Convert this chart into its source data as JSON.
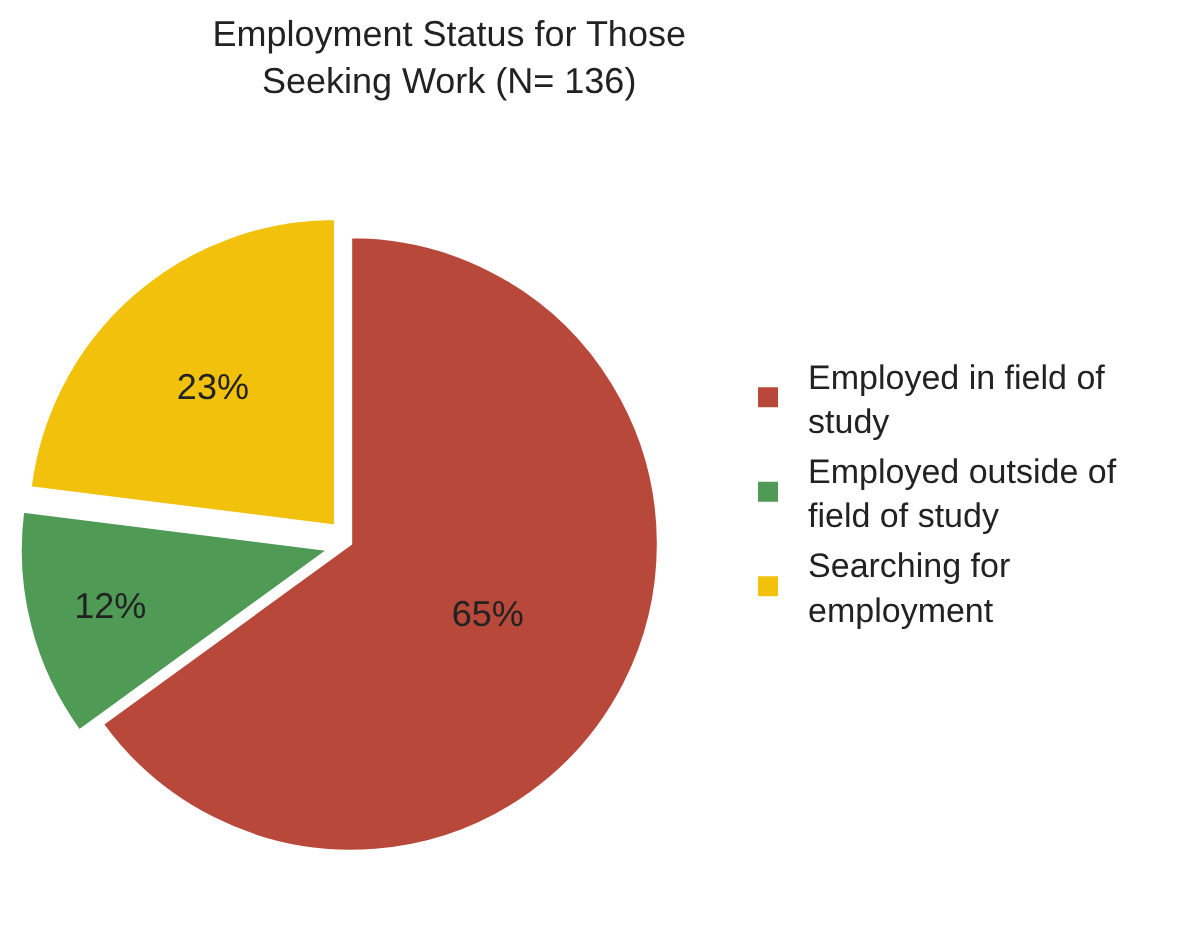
{
  "chart_data": {
    "type": "pie",
    "title": "Employment Status for Those Seeking Work (N= 136)",
    "categories": [
      "Employed in field of study",
      "Employed outside of field of study",
      "Searching for employment"
    ],
    "values": [
      65,
      12,
      23
    ],
    "value_labels": [
      "65%",
      "12%",
      "23%"
    ],
    "colors": [
      "#b8483a",
      "#4f9a55",
      "#f2c10c"
    ],
    "legend": "right"
  }
}
